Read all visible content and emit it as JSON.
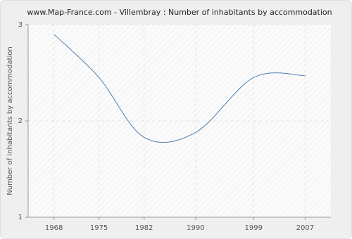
{
  "chart_data": {
    "type": "line",
    "title": "www.Map-France.com - Villembray : Number of inhabitants by accommodation",
    "y_label": "Number of inhabitants by accommodation",
    "x": [
      1968,
      1975,
      1982,
      1990,
      1999,
      2007
    ],
    "series": [
      {
        "name": "Villembray",
        "color": "#4f7faf",
        "values": [
          2.9,
          2.45,
          1.83,
          1.88,
          2.45,
          2.47
        ]
      }
    ],
    "xlim": [
      1964,
      2011
    ],
    "xticks": [
      1968,
      1975,
      1982,
      1990,
      1999,
      2007
    ],
    "ylim": [
      1,
      3
    ],
    "yticks": [
      1,
      2,
      3
    ],
    "grid": true
  }
}
